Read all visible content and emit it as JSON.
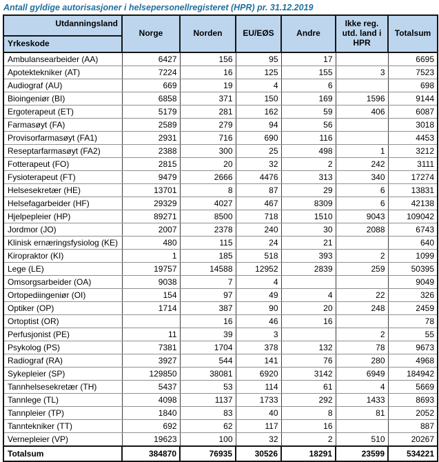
{
  "title": "Antall gyldige autorisasjoner i helsepersonellregisteret (HPR) pr. 31.12.2019",
  "colors": {
    "header_bg": "#BDD6EE",
    "title_text": "#1F6FA0",
    "border_dark": "#141414",
    "row_line": "#8F8F8F"
  },
  "table": {
    "corner": {
      "top_right": "Utdanningsland",
      "bottom_left": "Yrkeskode"
    },
    "columns": [
      "Norge",
      "Norden",
      "EU/EØS",
      "Andre",
      "Ikke reg. utd. land i HPR",
      "Totalsum"
    ],
    "rows": [
      {
        "label": "Ambulansearbeider (AA)",
        "values": [
          "6427",
          "156",
          "95",
          "17",
          "",
          "6695"
        ]
      },
      {
        "label": "Apotektekniker (AT)",
        "values": [
          "7224",
          "16",
          "125",
          "155",
          "3",
          "7523"
        ]
      },
      {
        "label": "Audiograf (AU)",
        "values": [
          "669",
          "19",
          "4",
          "6",
          "",
          "698"
        ]
      },
      {
        "label": "Bioingeniør (BI)",
        "values": [
          "6858",
          "371",
          "150",
          "169",
          "1596",
          "9144"
        ]
      },
      {
        "label": "Ergoterapeut (ET)",
        "values": [
          "5179",
          "281",
          "162",
          "59",
          "406",
          "6087"
        ]
      },
      {
        "label": "Farmasøyt (FA)",
        "values": [
          "2589",
          "279",
          "94",
          "56",
          "",
          "3018"
        ]
      },
      {
        "label": "Provisorfarmasøyt (FA1)",
        "values": [
          "2931",
          "716",
          "690",
          "116",
          "",
          "4453"
        ]
      },
      {
        "label": "Reseptarfarmasøyt (FA2)",
        "values": [
          "2388",
          "300",
          "25",
          "498",
          "1",
          "3212"
        ]
      },
      {
        "label": "Fotterapeut (FO)",
        "values": [
          "2815",
          "20",
          "32",
          "2",
          "242",
          "3111"
        ]
      },
      {
        "label": "Fysioterapeut (FT)",
        "values": [
          "9479",
          "2666",
          "4476",
          "313",
          "340",
          "17274"
        ]
      },
      {
        "label": "Helsesekretær (HE)",
        "values": [
          "13701",
          "8",
          "87",
          "29",
          "6",
          "13831"
        ]
      },
      {
        "label": "Helsefagarbeider (HF)",
        "values": [
          "29329",
          "4027",
          "467",
          "8309",
          "6",
          "42138"
        ]
      },
      {
        "label": "Hjelpepleier (HP)",
        "values": [
          "89271",
          "8500",
          "718",
          "1510",
          "9043",
          "109042"
        ]
      },
      {
        "label": "Jordmor (JO)",
        "values": [
          "2007",
          "2378",
          "240",
          "30",
          "2088",
          "6743"
        ]
      },
      {
        "label": "Klinisk ernæringsfysiolog (KE)",
        "values": [
          "480",
          "115",
          "24",
          "21",
          "",
          "640"
        ]
      },
      {
        "label": "Kiropraktor (KI)",
        "values": [
          "1",
          "185",
          "518",
          "393",
          "2",
          "1099"
        ]
      },
      {
        "label": "Lege (LE)",
        "values": [
          "19757",
          "14588",
          "12952",
          "2839",
          "259",
          "50395"
        ]
      },
      {
        "label": "Omsorgsarbeider (OA)",
        "values": [
          "9038",
          "7",
          "4",
          "",
          "",
          "9049"
        ]
      },
      {
        "label": "Ortopediingeniør (OI)",
        "values": [
          "154",
          "97",
          "49",
          "4",
          "22",
          "326"
        ]
      },
      {
        "label": "Optiker (OP)",
        "values": [
          "1714",
          "387",
          "90",
          "20",
          "248",
          "2459"
        ]
      },
      {
        "label": "Ortoptist (OR)",
        "values": [
          "",
          "16",
          "46",
          "16",
          "",
          "78"
        ]
      },
      {
        "label": "Perfusjonist (PE)",
        "values": [
          "11",
          "39",
          "3",
          "",
          "2",
          "55"
        ]
      },
      {
        "label": "Psykolog (PS)",
        "values": [
          "7381",
          "1704",
          "378",
          "132",
          "78",
          "9673"
        ]
      },
      {
        "label": "Radiograf (RA)",
        "values": [
          "3927",
          "544",
          "141",
          "76",
          "280",
          "4968"
        ]
      },
      {
        "label": "Sykepleier (SP)",
        "values": [
          "129850",
          "38081",
          "6920",
          "3142",
          "6949",
          "184942"
        ]
      },
      {
        "label": "Tannhelsesekretær (TH)",
        "values": [
          "5437",
          "53",
          "114",
          "61",
          "4",
          "5669"
        ]
      },
      {
        "label": "Tannlege (TL)",
        "values": [
          "4098",
          "1137",
          "1733",
          "292",
          "1433",
          "8693"
        ]
      },
      {
        "label": "Tannpleier (TP)",
        "values": [
          "1840",
          "83",
          "40",
          "8",
          "81",
          "2052"
        ]
      },
      {
        "label": "Tanntekniker (TT)",
        "values": [
          "692",
          "62",
          "117",
          "16",
          "",
          "887"
        ]
      },
      {
        "label": "Vernepleier (VP)",
        "values": [
          "19623",
          "100",
          "32",
          "2",
          "510",
          "20267"
        ]
      }
    ],
    "total": {
      "label": "Totalsum",
      "values": [
        "384870",
        "76935",
        "30526",
        "18291",
        "23599",
        "534221"
      ]
    }
  }
}
